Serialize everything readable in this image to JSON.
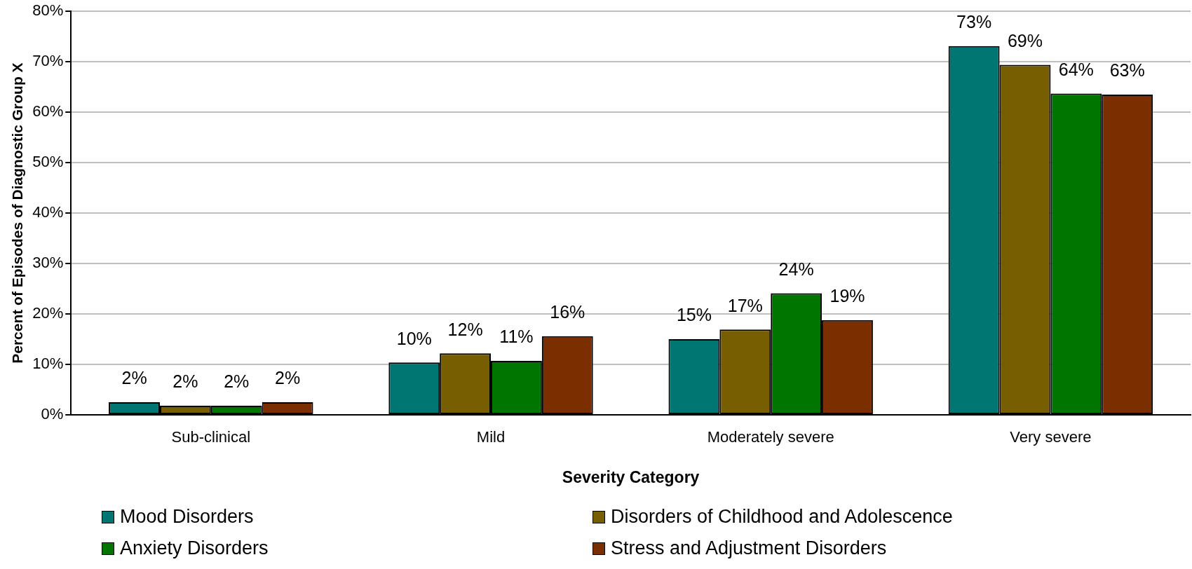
{
  "chart_data": {
    "type": "bar",
    "xlabel": "Severity Category",
    "ylabel": "Percent of Episodes of Diagnostic Group X",
    "categories": [
      "Sub-clinical",
      "Mild",
      "Moderately severe",
      "Very severe"
    ],
    "series": [
      {
        "name": "Mood Disorders",
        "color": "#007673",
        "values": [
          2.5,
          10.4,
          15.0,
          73.1
        ],
        "value_labels": [
          "2%",
          "10%",
          "15%",
          "73%"
        ]
      },
      {
        "name": "Disorders of Childhood and Adolescence",
        "color": "#775e00",
        "values": [
          1.8,
          12.2,
          16.9,
          69.4
        ],
        "value_labels": [
          "2%",
          "12%",
          "17%",
          "69%"
        ]
      },
      {
        "name": "Anxiety Disorders",
        "color": "#007500",
        "values": [
          1.8,
          10.7,
          24.1,
          63.7
        ],
        "value_labels": [
          "2%",
          "11%",
          "24%",
          "64%"
        ]
      },
      {
        "name": "Stress and Adjustment Disorders",
        "color": "#7b2f00",
        "values": [
          2.5,
          15.6,
          18.8,
          63.5
        ],
        "value_labels": [
          "2%",
          "16%",
          "19%",
          "63%"
        ]
      }
    ],
    "ylim": [
      0,
      80
    ],
    "yticks": [
      {
        "value": 0,
        "label": "0%"
      },
      {
        "value": 10,
        "label": "10%"
      },
      {
        "value": 20,
        "label": "20%"
      },
      {
        "value": 30,
        "label": "30%"
      },
      {
        "value": 40,
        "label": "40%"
      },
      {
        "value": 50,
        "label": "50%"
      },
      {
        "value": 60,
        "label": "60%"
      },
      {
        "value": 70,
        "label": "70%"
      },
      {
        "value": 80,
        "label": "80%"
      }
    ],
    "grid": "y",
    "legend": "bottom"
  }
}
